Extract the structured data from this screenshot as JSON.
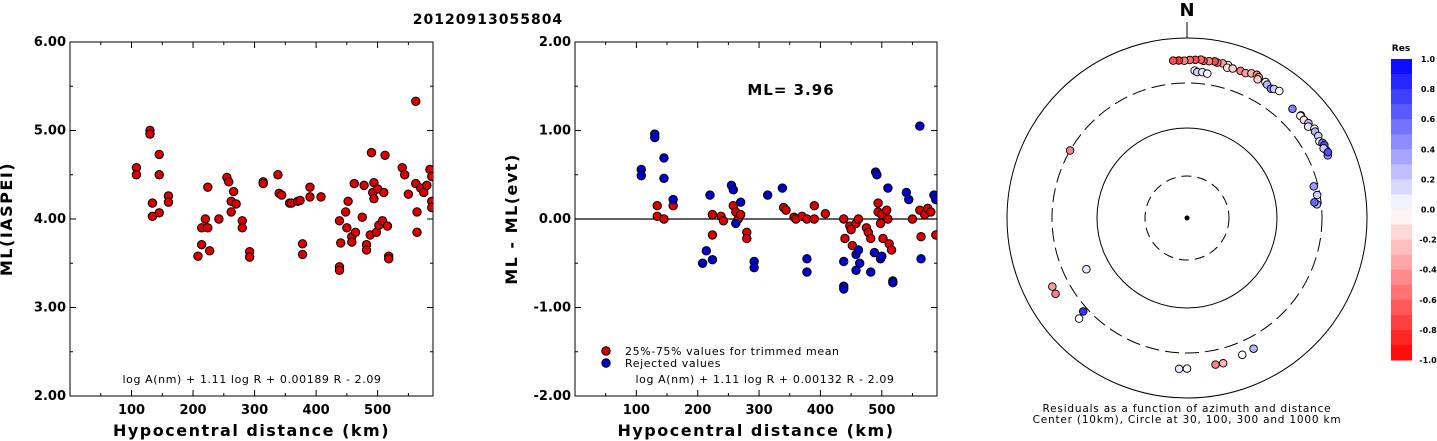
{
  "title": "20120913055804",
  "chart_data": [
    {
      "type": "scatter",
      "ylabel": "ML(IASPEI)",
      "xlabel": "Hypocentral distance (km)",
      "xlim": [
        0,
        590
      ],
      "ylim": [
        2.0,
        6.0
      ],
      "xticks": [
        "100",
        "200",
        "300",
        "400",
        "500"
      ],
      "yticks": [
        "6.00",
        "5.00",
        "4.00",
        "3.00",
        "2.00"
      ],
      "formula": "log A(nm) + 1.11 log R + 0.00189 R - 2.09",
      "marker_color": "#dd0000",
      "points": [
        [
          108,
          4.58
        ],
        [
          108,
          4.5
        ],
        [
          130,
          5.0
        ],
        [
          130,
          4.96
        ],
        [
          134,
          4.18
        ],
        [
          134,
          4.03
        ],
        [
          145,
          4.73
        ],
        [
          145,
          4.5
        ],
        [
          145,
          4.07
        ],
        [
          160,
          4.26
        ],
        [
          160,
          4.19
        ],
        [
          208,
          3.58
        ],
        [
          214,
          3.9
        ],
        [
          214,
          3.71
        ],
        [
          220,
          4.0
        ],
        [
          224,
          4.36
        ],
        [
          224,
          3.9
        ],
        [
          227,
          3.64
        ],
        [
          242,
          4.0
        ],
        [
          255,
          4.47
        ],
        [
          258,
          4.42
        ],
        [
          262,
          4.2
        ],
        [
          262,
          4.08
        ],
        [
          266,
          4.31
        ],
        [
          270,
          4.17
        ],
        [
          280,
          3.98
        ],
        [
          280,
          3.9
        ],
        [
          292,
          3.63
        ],
        [
          292,
          3.57
        ],
        [
          314,
          4.42
        ],
        [
          314,
          4.4
        ],
        [
          338,
          4.5
        ],
        [
          340,
          4.29
        ],
        [
          344,
          4.27
        ],
        [
          357,
          4.18
        ],
        [
          360,
          4.18
        ],
        [
          370,
          4.2
        ],
        [
          374,
          4.21
        ],
        [
          378,
          3.72
        ],
        [
          378,
          3.6
        ],
        [
          390,
          4.36
        ],
        [
          390,
          4.25
        ],
        [
          408,
          4.25
        ],
        [
          438,
          3.98
        ],
        [
          438,
          3.46
        ],
        [
          438,
          3.42
        ],
        [
          440,
          3.73
        ],
        [
          448,
          4.08
        ],
        [
          450,
          3.9
        ],
        [
          452,
          4.2
        ],
        [
          458,
          3.8
        ],
        [
          458,
          3.74
        ],
        [
          462,
          4.4
        ],
        [
          464,
          3.85
        ],
        [
          475,
          4.02
        ],
        [
          478,
          4.38
        ],
        [
          482,
          3.71
        ],
        [
          482,
          3.65
        ],
        [
          488,
          3.82
        ],
        [
          490,
          4.75
        ],
        [
          492,
          4.3
        ],
        [
          494,
          4.41
        ],
        [
          494,
          4.23
        ],
        [
          498,
          3.85
        ],
        [
          500,
          4.34
        ],
        [
          502,
          3.93
        ],
        [
          508,
          3.98
        ],
        [
          510,
          4.3
        ],
        [
          512,
          4.72
        ],
        [
          516,
          3.92
        ],
        [
          518,
          3.58
        ],
        [
          518,
          3.55
        ],
        [
          540,
          4.58
        ],
        [
          544,
          4.5
        ],
        [
          550,
          4.28
        ],
        [
          562,
          5.33
        ],
        [
          562,
          4.4
        ],
        [
          564,
          4.08
        ],
        [
          564,
          3.85
        ],
        [
          570,
          4.35
        ],
        [
          575,
          4.3
        ],
        [
          580,
          4.38
        ],
        [
          585,
          4.56
        ],
        [
          588,
          4.48
        ],
        [
          588,
          4.2
        ],
        [
          588,
          4.13
        ]
      ]
    },
    {
      "type": "scatter",
      "ylabel": "ML - ML(evt)",
      "xlabel": "Hypocentral distance (km)",
      "xlim": [
        0,
        590
      ],
      "ylim": [
        -2.0,
        2.0
      ],
      "xticks": [
        "100",
        "200",
        "300",
        "400",
        "500"
      ],
      "yticks": [
        "2.00",
        "1.00",
        "0.00",
        "-1.00",
        "-2.00"
      ],
      "reference_line": 0.0,
      "annotation": "ML= 3.96",
      "formula": "log A(nm) + 1.11 log R + 0.00132 R - 2.09",
      "legend": [
        {
          "label": "25%-75% values for trimmed mean",
          "color": "#dd0000"
        },
        {
          "label": "Rejected values",
          "color": "#0000cc"
        }
      ],
      "series": [
        {
          "name": "25%-75% values for trimmed mean",
          "color": "#dd0000",
          "points": [
            [
              134,
              0.15
            ],
            [
              134,
              0.03
            ],
            [
              145,
              0.0
            ],
            [
              160,
              0.15
            ],
            [
              224,
              0.05
            ],
            [
              224,
              -0.18
            ],
            [
              238,
              0.03
            ],
            [
              242,
              -0.02
            ],
            [
              258,
              0.15
            ],
            [
              262,
              0.08
            ],
            [
              266,
              0.0
            ],
            [
              270,
              0.05
            ],
            [
              280,
              -0.15
            ],
            [
              280,
              -0.22
            ],
            [
              340,
              0.13
            ],
            [
              344,
              0.1
            ],
            [
              357,
              0.02
            ],
            [
              360,
              0.0
            ],
            [
              370,
              0.03
            ],
            [
              378,
              0.0
            ],
            [
              390,
              0.15
            ],
            [
              390,
              0.0
            ],
            [
              408,
              0.06
            ],
            [
              438,
              0.0
            ],
            [
              440,
              -0.22
            ],
            [
              448,
              -0.08
            ],
            [
              450,
              -0.12
            ],
            [
              452,
              -0.3
            ],
            [
              458,
              -0.05
            ],
            [
              462,
              0.0
            ],
            [
              475,
              -0.1
            ],
            [
              478,
              -0.15
            ],
            [
              482,
              -0.22
            ],
            [
              494,
              0.18
            ],
            [
              494,
              0.08
            ],
            [
              498,
              -0.05
            ],
            [
              500,
              0.05
            ],
            [
              502,
              -0.22
            ],
            [
              508,
              0.1
            ],
            [
              510,
              0.0
            ],
            [
              512,
              -0.28
            ],
            [
              516,
              -0.35
            ],
            [
              550,
              0.0
            ],
            [
              562,
              0.1
            ],
            [
              564,
              -0.2
            ],
            [
              570,
              0.05
            ],
            [
              575,
              0.12
            ],
            [
              580,
              0.08
            ],
            [
              588,
              -0.18
            ]
          ]
        },
        {
          "name": "Rejected values",
          "color": "#0000cc",
          "points": [
            [
              108,
              0.56
            ],
            [
              108,
              0.49
            ],
            [
              130,
              0.96
            ],
            [
              130,
              0.92
            ],
            [
              145,
              0.69
            ],
            [
              145,
              0.46
            ],
            [
              160,
              0.22
            ],
            [
              208,
              -0.5
            ],
            [
              214,
              -0.36
            ],
            [
              220,
              0.27
            ],
            [
              224,
              -0.46
            ],
            [
              255,
              0.38
            ],
            [
              258,
              0.33
            ],
            [
              262,
              -0.05
            ],
            [
              270,
              0.19
            ],
            [
              292,
              -0.48
            ],
            [
              292,
              -0.55
            ],
            [
              314,
              0.27
            ],
            [
              338,
              0.35
            ],
            [
              378,
              -0.45
            ],
            [
              378,
              -0.6
            ],
            [
              438,
              -0.48
            ],
            [
              438,
              -0.76
            ],
            [
              438,
              -0.79
            ],
            [
              458,
              -0.58
            ],
            [
              458,
              -0.4
            ],
            [
              462,
              -0.35
            ],
            [
              464,
              -0.5
            ],
            [
              482,
              -0.6
            ],
            [
              488,
              -0.38
            ],
            [
              490,
              0.53
            ],
            [
              492,
              0.5
            ],
            [
              498,
              -0.45
            ],
            [
              500,
              -0.42
            ],
            [
              510,
              0.35
            ],
            [
              518,
              -0.7
            ],
            [
              518,
              -0.72
            ],
            [
              540,
              0.3
            ],
            [
              544,
              0.22
            ],
            [
              562,
              1.05
            ],
            [
              564,
              -0.45
            ],
            [
              585,
              0.27
            ],
            [
              588,
              0.22
            ]
          ]
        }
      ]
    },
    {
      "type": "scatter",
      "plot_kind": "polar",
      "north_label": "N",
      "caption_line1": "Residuals as a function of azimuth and distance",
      "caption_line2": "Center (10km), Circle at 30, 100, 300 and 1000 km",
      "colorbar_title": "Res",
      "colorbar_labels": [
        "1.0",
        "0.8",
        "0.6",
        "0.4",
        "0.2",
        "0.0",
        "-0.2",
        "-0.4",
        "-0.6",
        "-0.8",
        "-1.0"
      ],
      "colorbar_range": [
        -1.0,
        1.0
      ],
      "points_azimuth_deg_distance_km_residual": [
        [
          15,
          560,
          0.0
        ],
        [
          13,
          565,
          -0.4
        ],
        [
          11,
          560,
          -0.6
        ],
        [
          10,
          570,
          -0.7
        ],
        [
          8,
          560,
          -0.5
        ],
        [
          6,
          555,
          -0.7
        ],
        [
          5,
          570,
          -0.6
        ],
        [
          3,
          560,
          -0.7
        ],
        [
          1,
          555,
          -0.6
        ],
        [
          -1,
          545,
          -0.5
        ],
        [
          -3,
          550,
          -0.8
        ],
        [
          -5,
          555,
          -0.7
        ],
        [
          15,
          520,
          -0.1
        ],
        [
          17,
          530,
          -0.2
        ],
        [
          20,
          535,
          -0.5
        ],
        [
          22,
          530,
          -0.4
        ],
        [
          24,
          560,
          -0.3
        ],
        [
          26,
          575,
          -0.5
        ],
        [
          27,
          555,
          -0.4
        ],
        [
          3,
          420,
          0.0
        ],
        [
          4,
          405,
          0.2
        ],
        [
          6,
          410,
          0.1
        ],
        [
          8,
          400,
          0.0
        ],
        [
          27,
          520,
          -0.2
        ],
        [
          30,
          540,
          0.0
        ],
        [
          31,
          520,
          0.3
        ],
        [
          33,
          500,
          0.5
        ],
        [
          34,
          520,
          0.2
        ],
        [
          36,
          540,
          0.0
        ],
        [
          44,
          470,
          0.5
        ],
        [
          48,
          490,
          -0.2
        ],
        [
          48,
          480,
          0.0
        ],
        [
          50,
          480,
          -0.1
        ],
        [
          52,
          500,
          0.3
        ],
        [
          53,
          470,
          0.1
        ],
        [
          55,
          520,
          0.0
        ],
        [
          56,
          505,
          0.3
        ],
        [
          58,
          510,
          0.2
        ],
        [
          60,
          485,
          0.0
        ],
        [
          61,
          510,
          0.5
        ],
        [
          62,
          520,
          0.7
        ],
        [
          64,
          510,
          0.6
        ],
        [
          63,
          490,
          0.2
        ],
        [
          66,
          500,
          0.4
        ],
        [
          65,
          520,
          0.7
        ],
        [
          76,
          270,
          0.4
        ],
        [
          80,
          280,
          0.2
        ],
        [
          84,
          270,
          0.3
        ],
        [
          83,
          255,
          0.6
        ],
        [
          -60,
          300,
          -0.5
        ],
        [
          -120,
          470,
          -0.5
        ],
        [
          -117,
          462,
          -0.4
        ],
        [
          -132,
          340,
          0.8
        ],
        [
          -133,
          420,
          0.0
        ],
        [
          -117,
          175,
          0.1
        ],
        [
          158,
          420,
          0.0
        ],
        [
          153,
          410,
          0.3
        ],
        [
          166,
          445,
          -0.3
        ],
        [
          169,
          440,
          -0.5
        ],
        [
          180,
          455,
          0.0
        ],
        [
          183,
          462,
          0.1
        ]
      ]
    }
  ]
}
